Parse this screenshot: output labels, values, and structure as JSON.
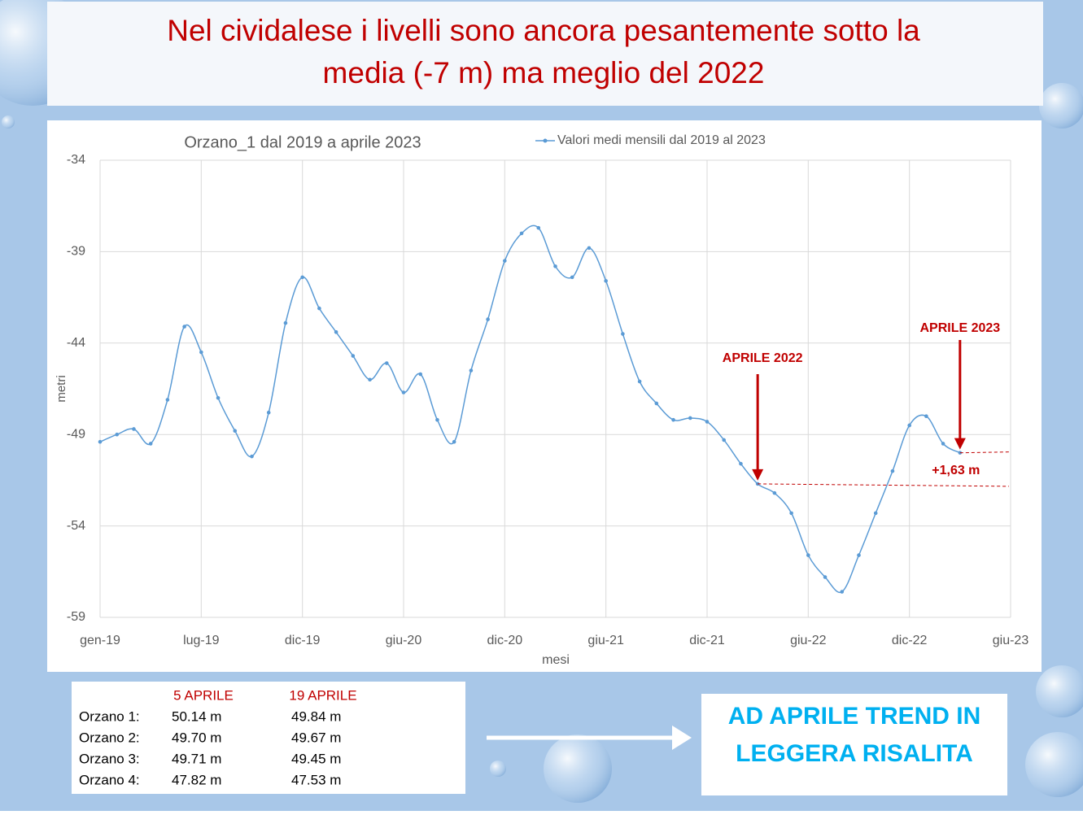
{
  "header": {
    "title_line1": "Nel cividalese i livelli sono ancora pesantemente sotto la",
    "title_line2": "media (-7 m) ma meglio del 2022"
  },
  "chart_data": {
    "type": "line",
    "title": "Orzano_1 dal 2019 a aprile 2023",
    "x_label": "mesi",
    "y_label": "metri",
    "categories": [
      "gen-19",
      null,
      null,
      null,
      null,
      null,
      "lug-19",
      null,
      null,
      null,
      null,
      null,
      "dic-19",
      null,
      null,
      null,
      null,
      null,
      "giu-20",
      null,
      null,
      null,
      null,
      null,
      "dic-20",
      null,
      null,
      null,
      null,
      null,
      "giu-21",
      null,
      null,
      null,
      null,
      null,
      "dic-21",
      null,
      null,
      null,
      null,
      null,
      "giu-22",
      null,
      null,
      null,
      null,
      null,
      "dic-22",
      null,
      null,
      null,
      null,
      null,
      "giu-23"
    ],
    "series": [
      {
        "name": "Valori medi mensili dal 2019 al 2023",
        "color": "#5b9bd5",
        "values": [
          -49.4,
          -49.0,
          -48.7,
          -49.5,
          -47.1,
          -43.1,
          -44.5,
          -47.0,
          -48.8,
          -50.2,
          -47.8,
          -42.9,
          -40.4,
          -42.1,
          -43.4,
          -44.7,
          -46.0,
          -45.1,
          -46.7,
          -45.7,
          -48.2,
          -49.4,
          -45.5,
          -42.7,
          -39.5,
          -38.0,
          -37.7,
          -39.8,
          -40.4,
          -38.8,
          -40.6,
          -43.5,
          -46.1,
          -47.3,
          -48.2,
          -48.1,
          -48.3,
          -49.3,
          -50.6,
          -51.7,
          -52.2,
          -53.3,
          -55.6,
          -56.8,
          -57.6,
          -55.6,
          -53.3,
          -51.0,
          -48.5,
          -48.0,
          -49.5,
          -50.0,
          null,
          null,
          null
        ]
      }
    ],
    "ylim": [
      -59,
      -34
    ],
    "yticks": [
      -34,
      -39,
      -44,
      -49,
      -54,
      -59
    ],
    "grid": true,
    "annotations": [
      "APRILE 2022",
      "APRILE 2023",
      "+1,63 m"
    ],
    "annotation_color": "#c00000"
  },
  "table": {
    "header": [
      "5 APRILE",
      "19 APRILE"
    ],
    "rows": [
      [
        "Orzano 1:",
        "50.14 m",
        "49.84 m"
      ],
      [
        "Orzano 2:",
        "49.70 m",
        "49.67 m"
      ],
      [
        "Orzano 3:",
        "49.71 m",
        "49.45 m"
      ],
      [
        "Orzano 4:",
        "47.82 m",
        "47.53 m"
      ]
    ]
  },
  "callout": {
    "line1": "AD APRILE TREND IN",
    "line2": "LEGGERA RISALITA"
  }
}
